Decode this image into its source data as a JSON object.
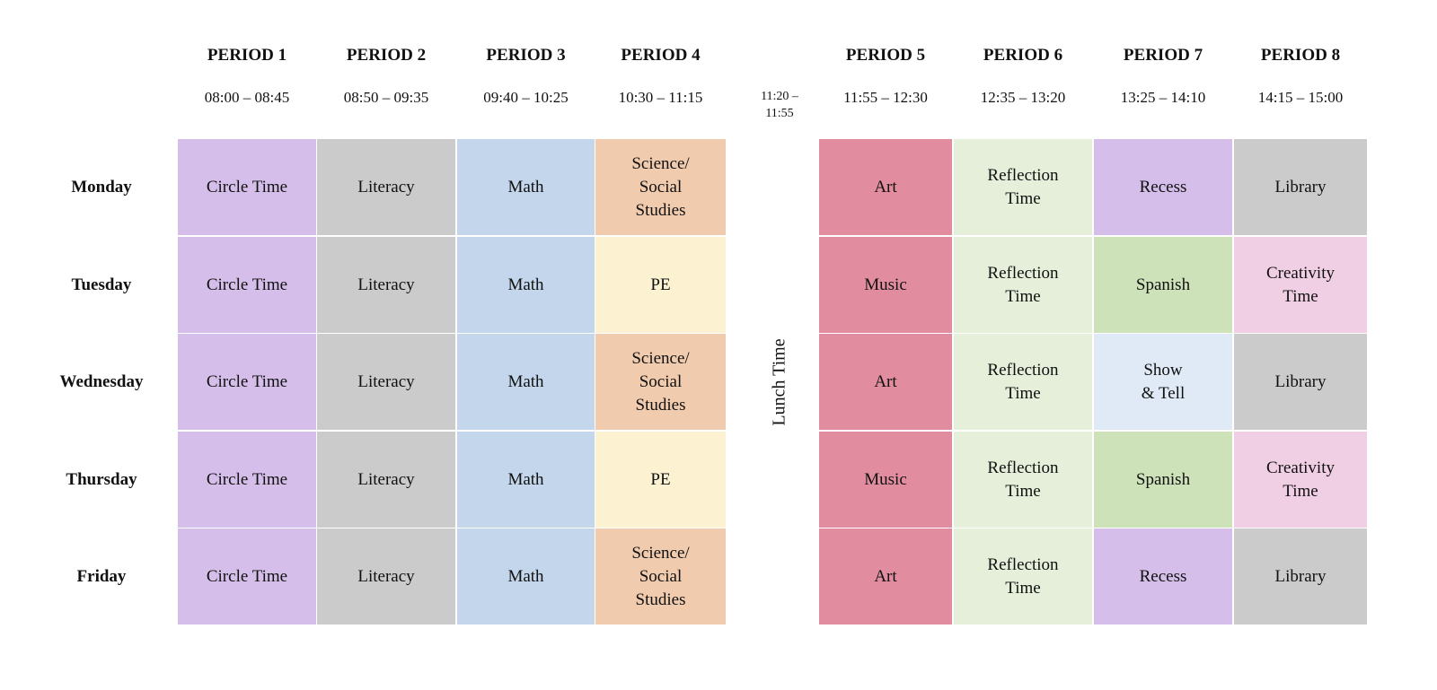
{
  "periods": [
    {
      "label": "PERIOD 1",
      "time": "08:00 – 08:45"
    },
    {
      "label": "PERIOD 2",
      "time": "08:50 – 09:35"
    },
    {
      "label": "PERIOD 3",
      "time": "09:40 – 10:25"
    },
    {
      "label": "PERIOD 4",
      "time": "10:30 – 11:15"
    },
    {
      "label": "PERIOD 5",
      "time": "11:55 – 12:30"
    },
    {
      "label": "PERIOD 6",
      "time": "12:35 – 13:20"
    },
    {
      "label": "PERIOD 7",
      "time": "13:25 – 14:10"
    },
    {
      "label": "PERIOD 8",
      "time": "14:15 – 15:00"
    }
  ],
  "lunch": {
    "time_line1": "11:20 –",
    "time_line2": "11:55",
    "label": "Lunch Time"
  },
  "days": [
    {
      "name": "Monday",
      "cells": [
        {
          "text": "Circle Time",
          "color": "#d5bfea"
        },
        {
          "text": "Literacy",
          "color": "#cbcbcb"
        },
        {
          "text": "Math",
          "color": "#c3d6ec"
        },
        {
          "text": "Science/\nSocial\nStudies",
          "color": "#f1cbae"
        },
        {
          "text": "Art",
          "color": "#e18d9f"
        },
        {
          "text": "Reflection\nTime",
          "color": "#e5efda"
        },
        {
          "text": "Recess",
          "color": "#d5bfea"
        },
        {
          "text": "Library",
          "color": "#cbcbcb"
        }
      ]
    },
    {
      "name": "Tuesday",
      "cells": [
        {
          "text": "Circle Time",
          "color": "#d5bfea"
        },
        {
          "text": "Literacy",
          "color": "#cbcbcb"
        },
        {
          "text": "Math",
          "color": "#c3d6ec"
        },
        {
          "text": "PE",
          "color": "#fcf2d2"
        },
        {
          "text": "Music",
          "color": "#e18d9f"
        },
        {
          "text": "Reflection\nTime",
          "color": "#e5efda"
        },
        {
          "text": "Spanish",
          "color": "#cde2b8"
        },
        {
          "text": "Creativity\nTime",
          "color": "#f0cfe5"
        }
      ]
    },
    {
      "name": "Wednesday",
      "cells": [
        {
          "text": "Circle Time",
          "color": "#d5bfea"
        },
        {
          "text": "Literacy",
          "color": "#cbcbcb"
        },
        {
          "text": "Math",
          "color": "#c3d6ec"
        },
        {
          "text": "Science/\nSocial\nStudies",
          "color": "#f1cbae"
        },
        {
          "text": "Art",
          "color": "#e18d9f"
        },
        {
          "text": "Reflection\nTime",
          "color": "#e5efda"
        },
        {
          "text": "Show\n& Tell",
          "color": "#e0eaf6"
        },
        {
          "text": "Library",
          "color": "#cbcbcb"
        }
      ]
    },
    {
      "name": "Thursday",
      "cells": [
        {
          "text": "Circle Time",
          "color": "#d5bfea"
        },
        {
          "text": "Literacy",
          "color": "#cbcbcb"
        },
        {
          "text": "Math",
          "color": "#c3d6ec"
        },
        {
          "text": "PE",
          "color": "#fcf2d2"
        },
        {
          "text": "Music",
          "color": "#e18d9f"
        },
        {
          "text": "Reflection\nTime",
          "color": "#e5efda"
        },
        {
          "text": "Spanish",
          "color": "#cde2b8"
        },
        {
          "text": "Creativity\nTime",
          "color": "#f0cfe5"
        }
      ]
    },
    {
      "name": "Friday",
      "cells": [
        {
          "text": "Circle Time",
          "color": "#d5bfea"
        },
        {
          "text": "Literacy",
          "color": "#cbcbcb"
        },
        {
          "text": "Math",
          "color": "#c3d6ec"
        },
        {
          "text": "Science/\nSocial\nStudies",
          "color": "#f1cbae"
        },
        {
          "text": "Art",
          "color": "#e18d9f"
        },
        {
          "text": "Reflection\nTime",
          "color": "#e5efda"
        },
        {
          "text": "Recess",
          "color": "#d5bfea"
        },
        {
          "text": "Library",
          "color": "#cbcbcb"
        }
      ]
    }
  ]
}
